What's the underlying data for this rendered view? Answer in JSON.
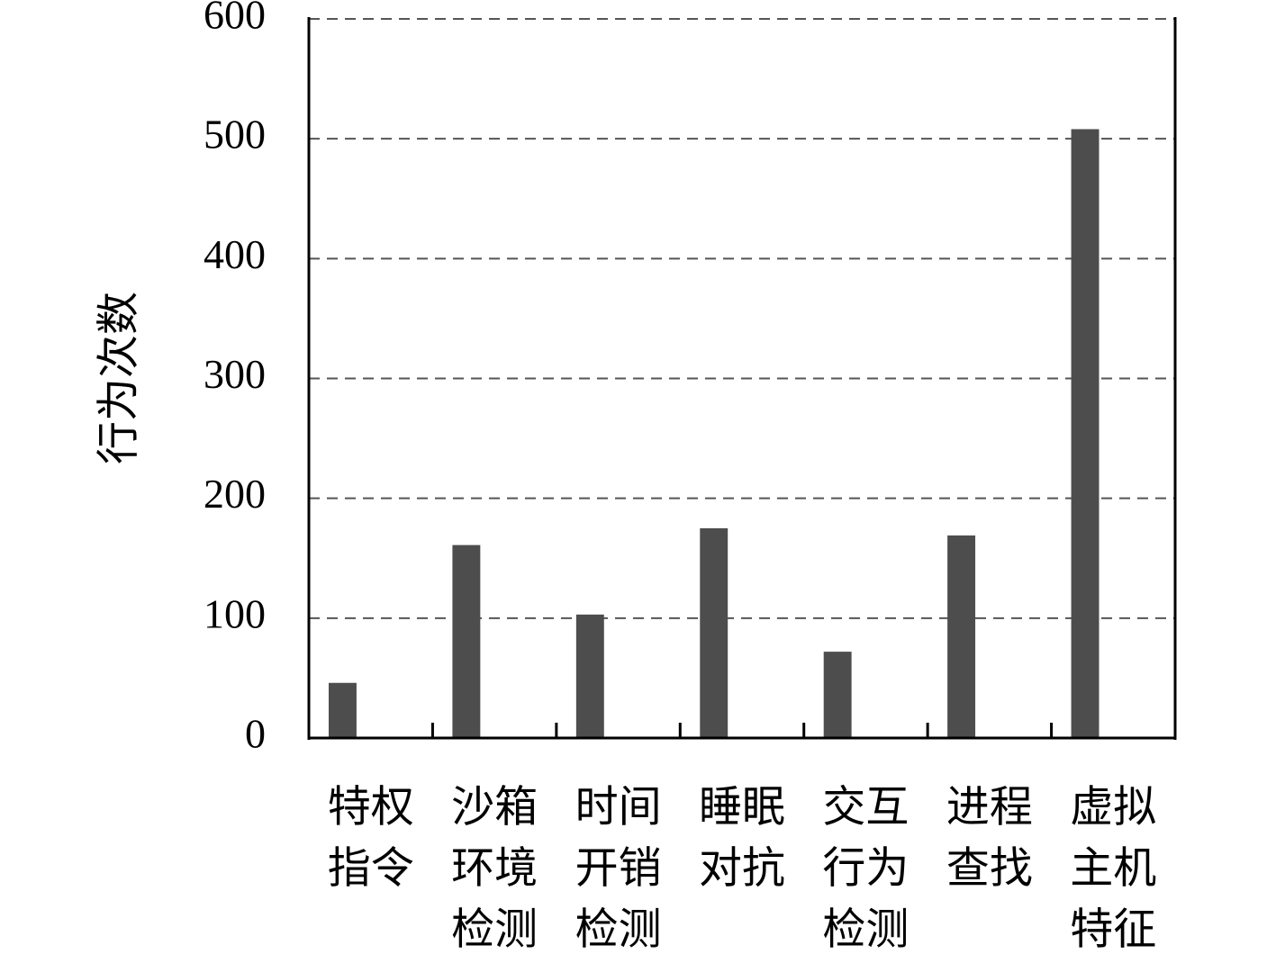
{
  "chart_data": {
    "type": "bar",
    "y_label": "行为次数",
    "categories": [
      [
        "特权",
        "指令"
      ],
      [
        "沙箱",
        "环境",
        "检测"
      ],
      [
        "时间",
        "开销",
        "检测"
      ],
      [
        "睡眠",
        "对抗"
      ],
      [
        "交互",
        "行为",
        "检测"
      ],
      [
        "进程",
        "查找"
      ],
      [
        "虚拟",
        "主机",
        "特征"
      ]
    ],
    "values": [
      46,
      161,
      103,
      175,
      72,
      169,
      508
    ],
    "color": "#4d4d4d",
    "ylim": [
      0,
      600
    ],
    "yticks": [
      0,
      100,
      200,
      300,
      400,
      500,
      600
    ],
    "grid": true
  }
}
